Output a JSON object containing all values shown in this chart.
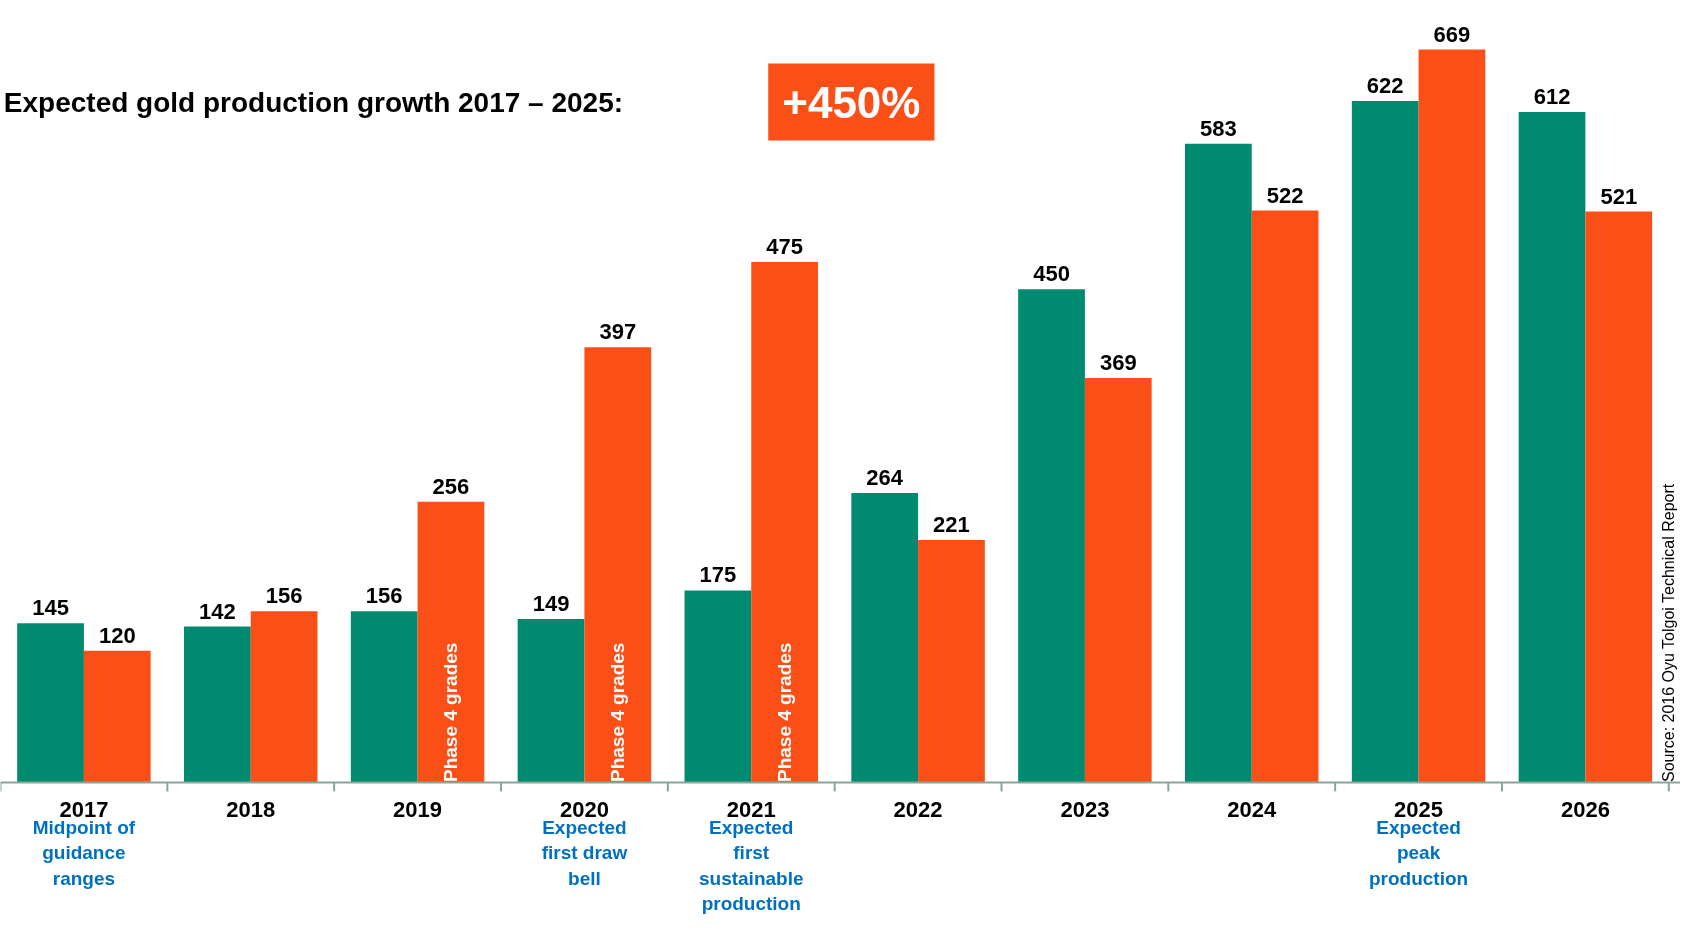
{
  "chart_data": {
    "type": "bar",
    "title": "Expected gold production growth 2017 – 2025:",
    "categories": [
      "2017",
      "2018",
      "2019",
      "2020",
      "2021",
      "2022",
      "2023",
      "2024",
      "2025",
      "2026"
    ],
    "series": [
      {
        "color": "#008a70",
        "values": [
          145,
          142,
          156,
          149,
          175,
          264,
          450,
          583,
          622,
          612
        ]
      },
      {
        "color": "#fa4f16",
        "values": [
          120,
          156,
          256,
          397,
          475,
          221,
          369,
          522,
          669,
          521
        ]
      }
    ],
    "data_labels": true,
    "tick_labels": "x",
    "annotations": [
      "+450%",
      "Midpoint of guidance ranges",
      "Expected first draw bell",
      "Expected first sustainable production",
      "Expected peak production",
      {
        "text": "Phase 4 grades",
        "x": "2019",
        "y": 0
      },
      {
        "text": "Phase 4 grades",
        "x": "2020",
        "y": 0
      },
      {
        "text": "Phase 4 grades",
        "x": "2021",
        "y": 0
      },
      "Source:  2016 Oyu Tolgoi Technical Report"
    ]
  }
}
